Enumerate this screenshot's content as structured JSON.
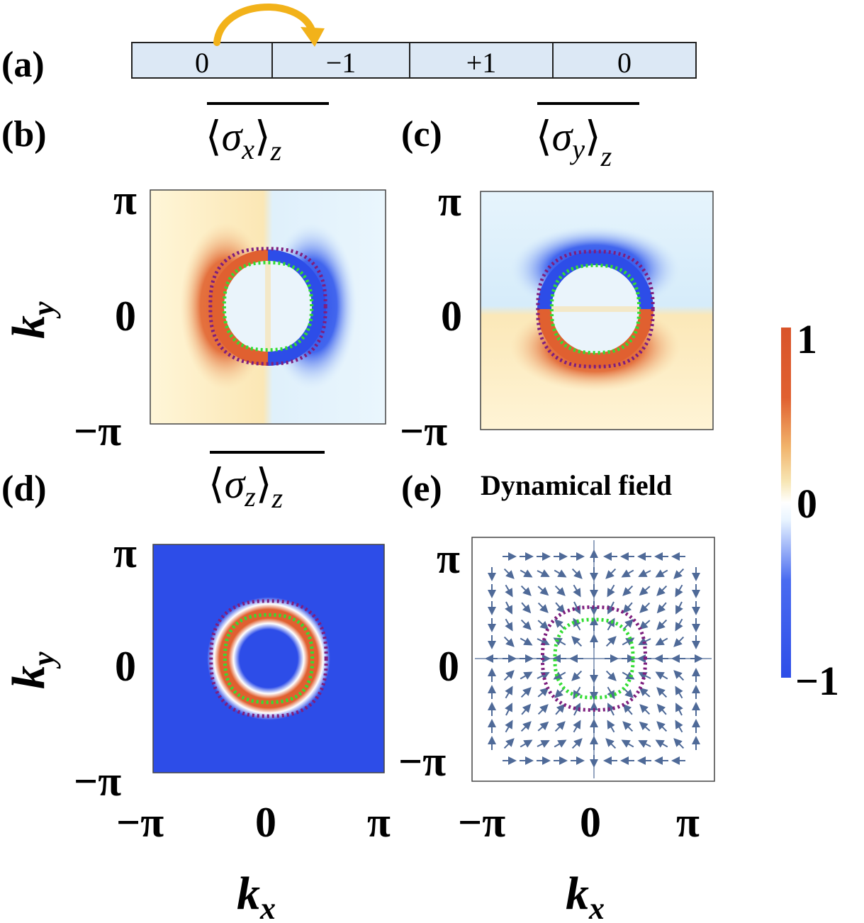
{
  "labels": {
    "a": "(a)",
    "b": "(b)",
    "c": "(c)",
    "d": "(d)",
    "e": "(e)"
  },
  "chain": {
    "cells": [
      "0",
      "−1",
      "+1",
      "0"
    ],
    "cell_color": "#dce8f5",
    "arrow_color": "#f2b21a",
    "hop": {
      "from": 0,
      "to": 1
    }
  },
  "titles": {
    "b": {
      "sigma": "σ",
      "sub": "x",
      "outer": "z"
    },
    "c": {
      "sigma": "σ",
      "sub": "y",
      "outer": "z"
    },
    "d": {
      "sigma": "σ",
      "sub": "z",
      "outer": "z"
    },
    "e": "Dynamical field"
  },
  "axes": {
    "ky_main": "k",
    "ky_sub": "y",
    "kx_main": "k",
    "kx_sub": "x",
    "ticks": [
      "−π",
      "0",
      "π"
    ],
    "range": [
      -3.14159,
      3.14159
    ]
  },
  "colorbar": {
    "max": "1",
    "mid": "0",
    "min": "−1",
    "colors": [
      "#2d4de8",
      "#ffffff",
      "#f6d28e",
      "#e06030",
      "#d9542a"
    ]
  },
  "rings": {
    "outer_color": "#7e1e7e",
    "inner_color": "#33dd33",
    "outer_r": 1.45,
    "inner_r": 1.1
  },
  "quiver": {
    "arrow_color": "#4f6a98",
    "grid": 13
  }
}
